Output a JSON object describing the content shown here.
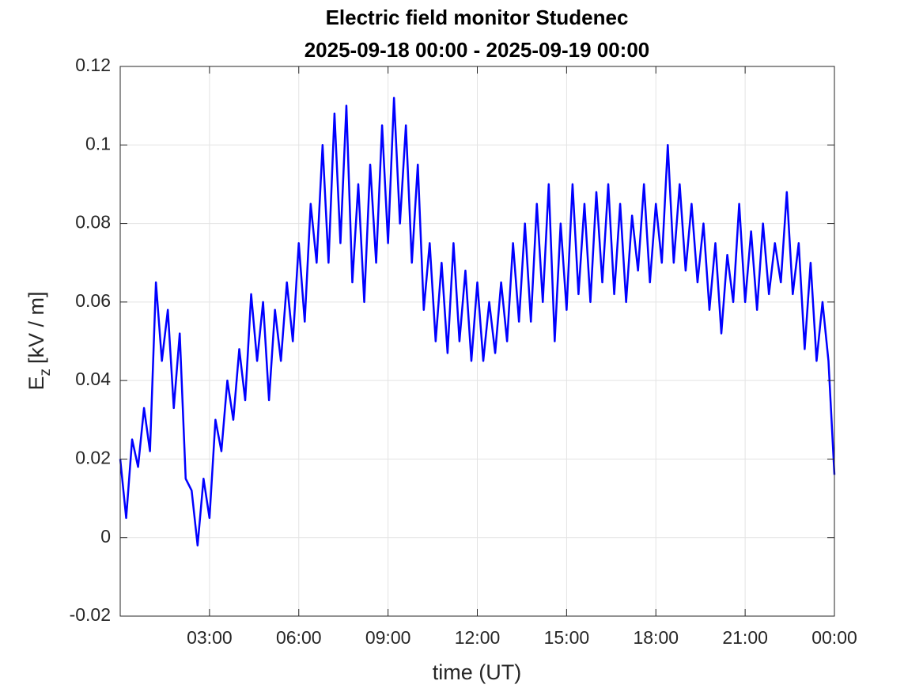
{
  "chart_data": {
    "type": "line",
    "title": "Electric field monitor Studenec",
    "subtitle": "2025-09-18 00:00 - 2025-09-19 00:00",
    "xlabel": "time (UT)",
    "ylabel": {
      "main": "E",
      "sub": "z",
      "unit": "[kV / m]"
    },
    "xlim": [
      0,
      24
    ],
    "xticks": [
      {
        "value": 3,
        "label": "03:00"
      },
      {
        "value": 6,
        "label": "06:00"
      },
      {
        "value": 9,
        "label": "09:00"
      },
      {
        "value": 12,
        "label": "12:00"
      },
      {
        "value": 15,
        "label": "15:00"
      },
      {
        "value": 18,
        "label": "18:00"
      },
      {
        "value": 21,
        "label": "21:00"
      },
      {
        "value": 24,
        "label": "00:00"
      }
    ],
    "ylim": [
      -0.02,
      0.12
    ],
    "yticks": [
      -0.02,
      0,
      0.02,
      0.04,
      0.06,
      0.08,
      0.1,
      0.12
    ],
    "grid": true,
    "x": [
      0,
      0.2,
      0.4,
      0.6,
      0.8,
      1,
      1.2,
      1.4,
      1.6,
      1.8,
      2,
      2.2,
      2.4,
      2.6,
      2.8,
      3,
      3.2,
      3.4,
      3.6,
      3.8,
      4,
      4.2,
      4.4,
      4.6,
      4.8,
      5,
      5.2,
      5.4,
      5.6,
      5.8,
      6,
      6.2,
      6.4,
      6.6,
      6.8,
      7,
      7.2,
      7.4,
      7.6,
      7.8,
      8,
      8.2,
      8.4,
      8.6,
      8.8,
      9,
      9.2,
      9.4,
      9.6,
      9.8,
      10,
      10.2,
      10.4,
      10.6,
      10.8,
      11,
      11.2,
      11.4,
      11.6,
      11.8,
      12,
      12.2,
      12.4,
      12.6,
      12.8,
      13,
      13.2,
      13.4,
      13.6,
      13.8,
      14,
      14.2,
      14.4,
      14.6,
      14.8,
      15,
      15.2,
      15.4,
      15.6,
      15.8,
      16,
      16.2,
      16.4,
      16.6,
      16.8,
      17,
      17.2,
      17.4,
      17.6,
      17.8,
      18,
      18.2,
      18.4,
      18.6,
      18.8,
      19,
      19.2,
      19.4,
      19.6,
      19.8,
      20,
      20.2,
      20.4,
      20.6,
      20.8,
      21,
      21.2,
      21.4,
      21.6,
      21.8,
      22,
      22.2,
      22.4,
      22.6,
      22.8,
      23,
      23.2,
      23.4,
      23.6,
      23.8,
      24
    ],
    "series": [
      {
        "color": "#0000ff",
        "values": [
          0.02,
          0.005,
          0.025,
          0.018,
          0.033,
          0.022,
          0.065,
          0.045,
          0.058,
          0.033,
          0.052,
          0.015,
          0.012,
          -0.002,
          0.015,
          0.005,
          0.03,
          0.022,
          0.04,
          0.03,
          0.048,
          0.035,
          0.062,
          0.045,
          0.06,
          0.035,
          0.058,
          0.045,
          0.065,
          0.05,
          0.075,
          0.055,
          0.085,
          0.07,
          0.1,
          0.07,
          0.108,
          0.075,
          0.11,
          0.065,
          0.09,
          0.06,
          0.095,
          0.07,
          0.105,
          0.075,
          0.112,
          0.08,
          0.105,
          0.07,
          0.095,
          0.058,
          0.075,
          0.05,
          0.07,
          0.047,
          0.075,
          0.05,
          0.068,
          0.045,
          0.065,
          0.045,
          0.06,
          0.047,
          0.065,
          0.05,
          0.075,
          0.055,
          0.08,
          0.055,
          0.085,
          0.06,
          0.09,
          0.05,
          0.08,
          0.058,
          0.09,
          0.062,
          0.085,
          0.06,
          0.088,
          0.065,
          0.09,
          0.062,
          0.085,
          0.06,
          0.082,
          0.068,
          0.09,
          0.065,
          0.085,
          0.07,
          0.1,
          0.07,
          0.09,
          0.068,
          0.085,
          0.065,
          0.08,
          0.058,
          0.075,
          0.052,
          0.072,
          0.06,
          0.085,
          0.06,
          0.078,
          0.058,
          0.08,
          0.062,
          0.075,
          0.065,
          0.088,
          0.062,
          0.075,
          0.048,
          0.07,
          0.045,
          0.06,
          0.045,
          0.016
        ]
      }
    ]
  }
}
